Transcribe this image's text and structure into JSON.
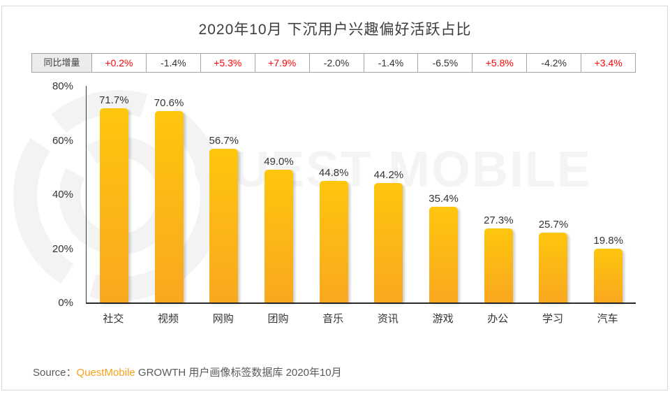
{
  "title": "2020年10月 下沉用户兴趣偏好活跃占比",
  "yoy": {
    "label": "同比增量",
    "values": [
      "+0.2%",
      "-1.4%",
      "+5.3%",
      "+7.9%",
      "-2.0%",
      "-1.4%",
      "-6.5%",
      "+5.8%",
      "-4.2%",
      "+3.4%"
    ]
  },
  "chart_data": {
    "type": "bar",
    "title": "2020年10月 下沉用户兴趣偏好活跃占比",
    "categories": [
      "社交",
      "视频",
      "网购",
      "团购",
      "音乐",
      "资讯",
      "游戏",
      "办公",
      "学习",
      "汽车"
    ],
    "values": [
      71.7,
      70.6,
      56.7,
      49.0,
      44.8,
      44.2,
      35.4,
      27.3,
      25.7,
      19.8
    ],
    "value_labels": [
      "71.7%",
      "70.6%",
      "56.7%",
      "49.0%",
      "44.8%",
      "44.2%",
      "35.4%",
      "27.3%",
      "25.7%",
      "19.8%"
    ],
    "yoy_change_row_label": "同比增量",
    "yoy_change": [
      "+0.2%",
      "-1.4%",
      "+5.3%",
      "+7.9%",
      "-2.0%",
      "-1.4%",
      "-6.5%",
      "+5.8%",
      "-4.2%",
      "+3.4%"
    ],
    "ylabel": "",
    "xlabel": "",
    "ylim": [
      0,
      80
    ],
    "yticks": [
      "0%",
      "20%",
      "40%",
      "60%",
      "80%"
    ],
    "grid": false,
    "legend": null,
    "bar_color_top": "#FEC60E",
    "bar_color_bottom": "#F9A81F",
    "positive_change_color": "#FF0000",
    "negative_change_color": "#333333"
  },
  "watermark": {
    "text": "QUEST MOBILE"
  },
  "source": {
    "prefix": "Source：",
    "brand": "QuestMobile",
    "suffix": " GROWTH 用户画像标签数据库 2020年10月",
    "brand_color": "#F9A11B"
  }
}
